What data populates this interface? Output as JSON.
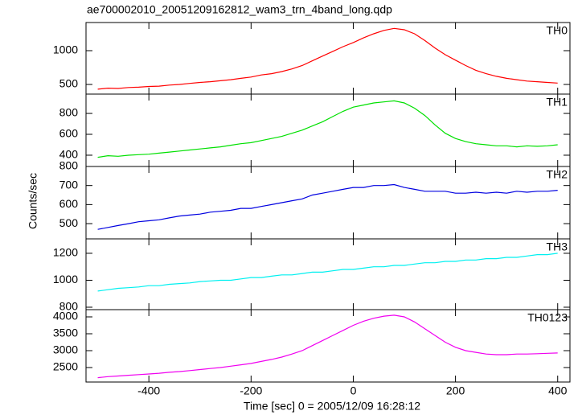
{
  "chart_data": [
    {
      "type": "line",
      "title": "ae700002010_20051209162812_wam3_trn_4band_long.qdp",
      "name": "TH0",
      "color": "#ff0000",
      "x": [
        -500,
        -480,
        -460,
        -440,
        -420,
        -400,
        -380,
        -360,
        -340,
        -320,
        -300,
        -280,
        -260,
        -240,
        -220,
        -200,
        -180,
        -160,
        -140,
        -120,
        -100,
        -80,
        -60,
        -40,
        -20,
        0,
        20,
        40,
        60,
        80,
        100,
        120,
        140,
        160,
        180,
        200,
        220,
        240,
        260,
        280,
        300,
        320,
        340,
        360,
        380,
        400
      ],
      "values": [
        430,
        445,
        440,
        455,
        460,
        470,
        475,
        490,
        500,
        515,
        530,
        540,
        555,
        570,
        590,
        610,
        640,
        660,
        690,
        730,
        780,
        850,
        920,
        990,
        1060,
        1120,
        1190,
        1250,
        1300,
        1330,
        1310,
        1250,
        1150,
        1040,
        940,
        860,
        780,
        710,
        660,
        620,
        590,
        570,
        550,
        540,
        530,
        520
      ],
      "xlim": [
        -523,
        424
      ],
      "xticks": [
        -400,
        -200,
        0,
        200,
        400
      ],
      "ylim": [
        357,
        1417
      ],
      "yticks": [
        500,
        1000
      ]
    },
    {
      "type": "line",
      "name": "TH1",
      "color": "#00e000",
      "x": [
        -500,
        -480,
        -460,
        -440,
        -420,
        -400,
        -380,
        -360,
        -340,
        -320,
        -300,
        -280,
        -260,
        -240,
        -220,
        -200,
        -180,
        -160,
        -140,
        -120,
        -100,
        -80,
        -60,
        -40,
        -20,
        0,
        20,
        40,
        60,
        80,
        100,
        120,
        140,
        160,
        180,
        200,
        220,
        240,
        260,
        280,
        300,
        320,
        340,
        360,
        380,
        400
      ],
      "values": [
        380,
        395,
        390,
        400,
        405,
        410,
        420,
        430,
        440,
        450,
        460,
        470,
        480,
        495,
        510,
        520,
        540,
        560,
        580,
        610,
        640,
        680,
        720,
        770,
        820,
        860,
        880,
        900,
        910,
        920,
        900,
        850,
        780,
        690,
        610,
        560,
        530,
        510,
        500,
        490,
        490,
        480,
        490,
        485,
        490,
        500
      ],
      "xlim": [
        -523,
        424
      ],
      "xticks": [
        -400,
        -200,
        0,
        200,
        400
      ],
      "ylim": [
        292,
        985
      ],
      "yticks": [
        400,
        600,
        800
      ]
    },
    {
      "type": "line",
      "name": "TH2",
      "color": "#0000e0",
      "ylabel": "Counts/sec",
      "x": [
        -500,
        -480,
        -460,
        -440,
        -420,
        -400,
        -380,
        -360,
        -340,
        -320,
        -300,
        -280,
        -260,
        -240,
        -220,
        -200,
        -180,
        -160,
        -140,
        -120,
        -100,
        -80,
        -60,
        -40,
        -20,
        0,
        20,
        40,
        60,
        80,
        100,
        120,
        140,
        160,
        180,
        200,
        220,
        240,
        260,
        280,
        300,
        320,
        340,
        360,
        380,
        400
      ],
      "values": [
        470,
        480,
        490,
        500,
        510,
        515,
        520,
        530,
        540,
        545,
        550,
        560,
        565,
        570,
        580,
        580,
        590,
        600,
        610,
        620,
        630,
        650,
        660,
        670,
        680,
        690,
        690,
        700,
        700,
        705,
        690,
        680,
        670,
        670,
        670,
        660,
        660,
        665,
        660,
        665,
        660,
        670,
        665,
        670,
        670,
        675
      ],
      "xlim": [
        -523,
        424
      ],
      "xticks": [
        -400,
        -200,
        0,
        200,
        400
      ],
      "ylim": [
        420,
        800
      ],
      "yticks": [
        500,
        600,
        700,
        800
      ]
    },
    {
      "type": "line",
      "name": "TH3",
      "color": "#00f0f0",
      "x": [
        -500,
        -480,
        -460,
        -440,
        -420,
        -400,
        -380,
        -360,
        -340,
        -320,
        -300,
        -280,
        -260,
        -240,
        -220,
        -200,
        -180,
        -160,
        -140,
        -120,
        -100,
        -80,
        -60,
        -40,
        -20,
        0,
        20,
        40,
        60,
        80,
        100,
        120,
        140,
        160,
        180,
        200,
        220,
        240,
        260,
        280,
        300,
        320,
        340,
        360,
        380,
        400
      ],
      "values": [
        920,
        930,
        940,
        945,
        950,
        960,
        960,
        970,
        975,
        980,
        990,
        995,
        1000,
        1000,
        1010,
        1020,
        1020,
        1030,
        1040,
        1040,
        1050,
        1060,
        1060,
        1070,
        1080,
        1080,
        1090,
        1100,
        1100,
        1110,
        1110,
        1120,
        1130,
        1130,
        1140,
        1140,
        1150,
        1150,
        1160,
        1160,
        1170,
        1170,
        1180,
        1190,
        1190,
        1200
      ],
      "xlim": [
        -523,
        424
      ],
      "xticks": [
        -400,
        -200,
        0,
        200,
        400
      ],
      "ylim": [
        782,
        1307
      ],
      "yticks": [
        800,
        1000,
        1200
      ]
    },
    {
      "type": "line",
      "name": "TH0123",
      "color": "#f000f0",
      "xlabel": "Time [sec] 0 = 2005/12/09 16:28:12",
      "x": [
        -500,
        -480,
        -460,
        -440,
        -420,
        -400,
        -380,
        -360,
        -340,
        -320,
        -300,
        -280,
        -260,
        -240,
        -220,
        -200,
        -180,
        -160,
        -140,
        -120,
        -100,
        -80,
        -60,
        -40,
        -20,
        0,
        20,
        40,
        60,
        80,
        100,
        120,
        140,
        160,
        180,
        200,
        220,
        240,
        260,
        280,
        300,
        320,
        340,
        360,
        380,
        400
      ],
      "values": [
        2200,
        2230,
        2250,
        2270,
        2290,
        2310,
        2330,
        2360,
        2380,
        2410,
        2440,
        2470,
        2500,
        2540,
        2580,
        2620,
        2680,
        2740,
        2810,
        2900,
        3000,
        3150,
        3300,
        3450,
        3600,
        3750,
        3870,
        3960,
        4020,
        4050,
        4000,
        3850,
        3650,
        3450,
        3250,
        3100,
        3000,
        2950,
        2900,
        2880,
        2880,
        2900,
        2900,
        2910,
        2920,
        2930
      ],
      "xlim": [
        -523,
        424
      ],
      "xticks": [
        -400,
        -200,
        0,
        200,
        400
      ],
      "ylim": [
        2071,
        4214
      ],
      "yticks": [
        2500,
        3000,
        3500,
        4000
      ]
    }
  ]
}
